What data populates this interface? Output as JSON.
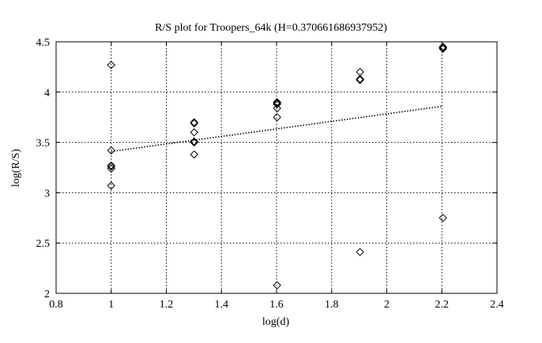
{
  "chart_data": {
    "type": "scatter",
    "title": "R/S plot for Troopers_64k (H=0.370661686937952)",
    "xlabel": "log(d)",
    "ylabel": "log(R/S)",
    "xlim": [
      0.8,
      2.4
    ],
    "ylim": [
      2,
      4.5
    ],
    "xticks": [
      "0.8",
      "1",
      "1.2",
      "1.4",
      "1.6",
      "1.8",
      "2",
      "2.2",
      "2.4"
    ],
    "yticks": [
      "2",
      "2.5",
      "3",
      "3.5",
      "4",
      "4.5"
    ],
    "grid": true,
    "marker": "diamond",
    "points": [
      {
        "x": 1.0,
        "y": 4.27
      },
      {
        "x": 1.0,
        "y": 3.42
      },
      {
        "x": 1.0,
        "y": 3.27
      },
      {
        "x": 1.0,
        "y": 3.26
      },
      {
        "x": 1.0,
        "y": 3.24
      },
      {
        "x": 1.0,
        "y": 3.07
      },
      {
        "x": 1.301,
        "y": 3.7
      },
      {
        "x": 1.301,
        "y": 3.69
      },
      {
        "x": 1.301,
        "y": 3.6
      },
      {
        "x": 1.301,
        "y": 3.51
      },
      {
        "x": 1.301,
        "y": 3.5
      },
      {
        "x": 1.301,
        "y": 3.38
      },
      {
        "x": 1.602,
        "y": 3.9
      },
      {
        "x": 1.602,
        "y": 3.89
      },
      {
        "x": 1.602,
        "y": 3.88
      },
      {
        "x": 1.602,
        "y": 3.84
      },
      {
        "x": 1.602,
        "y": 3.75
      },
      {
        "x": 1.602,
        "y": 2.08
      },
      {
        "x": 1.903,
        "y": 4.2
      },
      {
        "x": 1.903,
        "y": 4.13
      },
      {
        "x": 1.903,
        "y": 4.12
      },
      {
        "x": 1.903,
        "y": 2.41
      },
      {
        "x": 2.204,
        "y": 4.45
      },
      {
        "x": 2.204,
        "y": 4.44
      },
      {
        "x": 2.204,
        "y": 4.43
      },
      {
        "x": 2.204,
        "y": 2.75
      }
    ],
    "fit_line": {
      "x": [
        1.0,
        2.204
      ],
      "y": [
        3.41,
        3.86
      ],
      "style": "dotted"
    }
  }
}
